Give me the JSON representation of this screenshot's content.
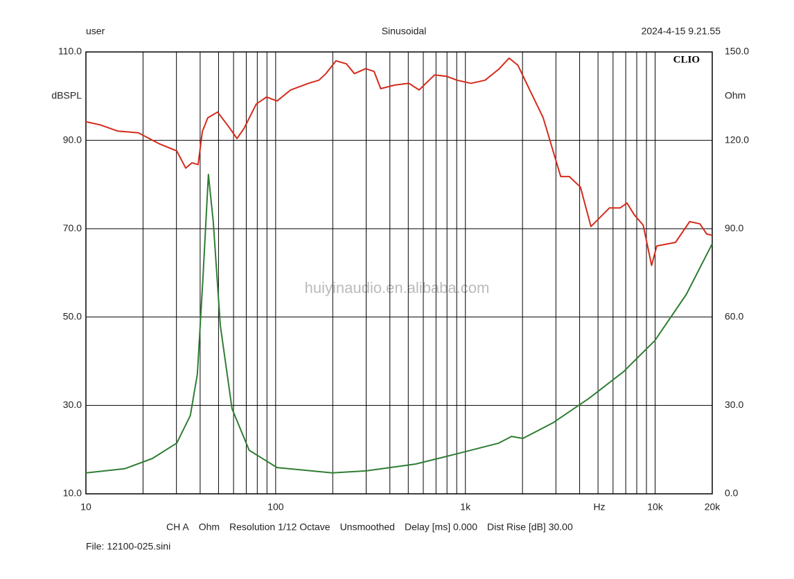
{
  "chart_data": {
    "type": "line",
    "header_left": "user",
    "title": "Sinusoidal",
    "header_right": "2024-4-15 9.21.55",
    "brand": "CLIO",
    "ylabel": "dBSPL",
    "y2label": "Ohm",
    "xlabel": "Hz",
    "watermark": "huiyinaudio.en.alibaba.com",
    "footer_items": [
      "CH A",
      "Ohm",
      "Resolution 1/12 Octave",
      "Unsmoothed",
      "Delay [ms] 0.000",
      "Dist Rise [dB] 30.00"
    ],
    "file": "File: 12100-025.sini",
    "xscale": "log",
    "xlim": [
      10,
      20000
    ],
    "xticks": [
      10,
      100,
      {
        "value": 1000,
        "label": "1k"
      },
      {
        "value": 10000,
        "label": "10k"
      },
      {
        "value": 20000,
        "label": "20k"
      }
    ],
    "xminor": [
      20,
      30,
      40,
      50,
      60,
      70,
      80,
      90,
      200,
      300,
      400,
      500,
      600,
      700,
      800,
      900,
      2000,
      3000,
      4000,
      5000,
      6000,
      7000,
      8000,
      9000
    ],
    "ylim": [
      10,
      110
    ],
    "yticks": [
      {
        "value": 10,
        "label": "10.0"
      },
      {
        "value": 30,
        "label": "30.0"
      },
      {
        "value": 50,
        "label": "50.0"
      },
      {
        "value": 70,
        "label": "70.0"
      },
      {
        "value": 90,
        "label": "90.0"
      },
      {
        "value": 110,
        "label": "110.0"
      }
    ],
    "y2lim": [
      0,
      150
    ],
    "y2ticks": [
      {
        "value": 0,
        "label": "0.0"
      },
      {
        "value": 30,
        "label": "30.0"
      },
      {
        "value": 60,
        "label": "60.0"
      },
      {
        "value": 90,
        "label": "90.0"
      },
      {
        "value": 120,
        "label": "120.0"
      },
      {
        "value": 150,
        "label": "150.0"
      }
    ],
    "grid": true,
    "series": [
      {
        "name": "dBSPL",
        "color": "#d42a1a",
        "axis": "y",
        "x": [
          10,
          11.9,
          14.7,
          18.9,
          24.4,
          30.1,
          33.6,
          36.2,
          39,
          41.1,
          43.9,
          49.4,
          56.5,
          62.5,
          68.1,
          79,
          89.5,
          101.7,
          120,
          149,
          169,
          184,
          208,
          236,
          260,
          298,
          330,
          358,
          424,
          504,
          570,
          688,
          794,
          903,
          1072,
          1270,
          1500,
          1700,
          1890,
          2200,
          2570,
          3180,
          3530,
          4040,
          4590,
          4950,
          5750,
          6540,
          7110,
          7750,
          8650,
          9580,
          10200,
          12800,
          15200,
          17200,
          18700,
          20000
        ],
        "values": [
          94.2,
          93.5,
          92.1,
          91.7,
          89.2,
          87.6,
          83.7,
          84.9,
          84.5,
          92,
          95.1,
          96.4,
          93.1,
          90.4,
          92.7,
          98.2,
          99.8,
          98.9,
          101.4,
          102.9,
          103.6,
          105.1,
          108,
          107.3,
          105.1,
          106.2,
          105.6,
          101.7,
          102.5,
          102.9,
          101.4,
          104.8,
          104.5,
          103.6,
          102.9,
          103.6,
          106.1,
          108.6,
          107,
          101.1,
          95.1,
          81.8,
          81.8,
          79.4,
          70.5,
          71.9,
          74.7,
          74.7,
          75.8,
          73.2,
          70.8,
          61.7,
          66.1,
          66.9,
          71.6,
          71.1,
          68.8,
          68.5
        ]
      },
      {
        "name": "Ohm",
        "color": "#2e7d32",
        "axis": "y2",
        "x": [
          10,
          16,
          22.4,
          30.1,
          35.5,
          38.7,
          41.4,
          44.2,
          46.9,
          51.1,
          58.9,
          72.5,
          101.7,
          199,
          302,
          547,
          903,
          1500,
          1750,
          2010,
          2910,
          4480,
          6800,
          9960,
          14600,
          20000
        ],
        "values": [
          7.1,
          8.5,
          12,
          17.2,
          26.6,
          40.7,
          73.6,
          108.4,
          92.4,
          57.1,
          28.9,
          14.8,
          8.9,
          7.1,
          7.8,
          10.1,
          13.6,
          17.2,
          19.5,
          18.8,
          24.2,
          32.4,
          41.4,
          52,
          67.7,
          84.9
        ]
      }
    ]
  }
}
